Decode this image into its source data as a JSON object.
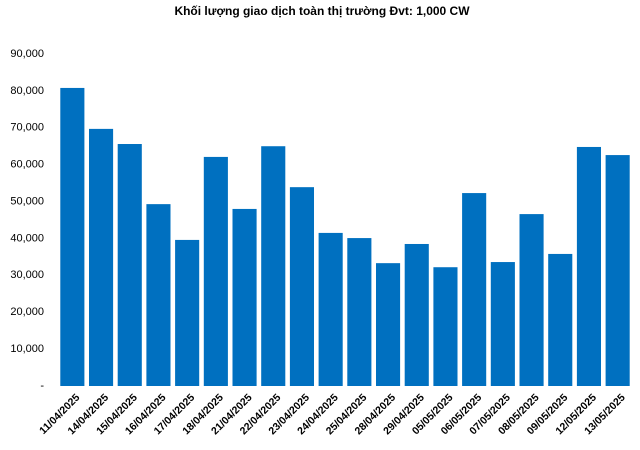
{
  "chart_data": {
    "type": "bar",
    "title": "Khối lượng giao dịch toàn thị trường Đvt: 1,000 CW",
    "categories": [
      "11/04/2025",
      "14/04/2025",
      "15/04/2025",
      "16/04/2025",
      "17/04/2025",
      "18/04/2025",
      "21/04/2025",
      "22/04/2025",
      "23/04/2025",
      "24/04/2025",
      "25/04/2025",
      "28/04/2025",
      "29/04/2025",
      "05/05/2025",
      "06/05/2025",
      "07/05/2025",
      "08/05/2025",
      "09/05/2025",
      "12/05/2025",
      "13/05/2025"
    ],
    "values": [
      80800,
      69700,
      65600,
      49300,
      39600,
      62100,
      48000,
      65000,
      53900,
      41500,
      40100,
      33300,
      38500,
      32200,
      52300,
      33600,
      46600,
      35800,
      64800,
      62600
    ],
    "color": "#0070c0",
    "ylim": [
      0,
      90000
    ],
    "yticks": [
      {
        "value": 0,
        "label": "-"
      },
      {
        "value": 10000,
        "label": "10,000"
      },
      {
        "value": 20000,
        "label": "20,000"
      },
      {
        "value": 30000,
        "label": "30,000"
      },
      {
        "value": 40000,
        "label": "40,000"
      },
      {
        "value": 50000,
        "label": "50,000"
      },
      {
        "value": 60000,
        "label": "60,000"
      },
      {
        "value": 70000,
        "label": "70,000"
      },
      {
        "value": 80000,
        "label": "80,000"
      },
      {
        "value": 90000,
        "label": "90,000"
      }
    ],
    "grid": false
  }
}
